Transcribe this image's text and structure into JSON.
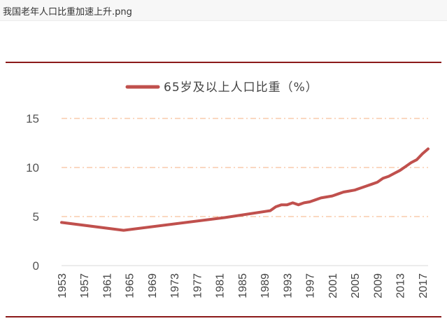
{
  "window": {
    "filename": "我国老年人口比重加速上升.png"
  },
  "colors": {
    "line": "#c0504d",
    "rule": "#8b1a1a",
    "grid": "#f4b183"
  },
  "chart_data": {
    "type": "line",
    "title": "",
    "xlabel": "",
    "ylabel": "",
    "ylim": [
      0,
      15
    ],
    "yticks": [
      "0",
      "5",
      "10",
      "15"
    ],
    "grid": "horizontal dash-dot",
    "legend_position": "top-center",
    "xticks": [
      "1953",
      "1957",
      "1961",
      "1965",
      "1969",
      "1973",
      "1977",
      "1981",
      "1985",
      "1989",
      "1993",
      "1997",
      "2001",
      "2005",
      "2009",
      "2013",
      "2017"
    ],
    "series": [
      {
        "name": "65岁及以上人口比重（%）",
        "x": [
          1953,
          1964,
          1982,
          1990,
          1991,
          1992,
          1993,
          1994,
          1995,
          1996,
          1997,
          1998,
          1999,
          2000,
          2001,
          2002,
          2003,
          2004,
          2005,
          2006,
          2007,
          2008,
          2009,
          2010,
          2011,
          2012,
          2013,
          2014,
          2015,
          2016,
          2017,
          2018
        ],
        "values": [
          4.4,
          3.6,
          4.9,
          5.6,
          6.0,
          6.2,
          6.2,
          6.4,
          6.2,
          6.4,
          6.5,
          6.7,
          6.9,
          7.0,
          7.1,
          7.3,
          7.5,
          7.6,
          7.7,
          7.9,
          8.1,
          8.3,
          8.5,
          8.9,
          9.1,
          9.4,
          9.7,
          10.1,
          10.5,
          10.8,
          11.4,
          11.9
        ]
      }
    ]
  }
}
